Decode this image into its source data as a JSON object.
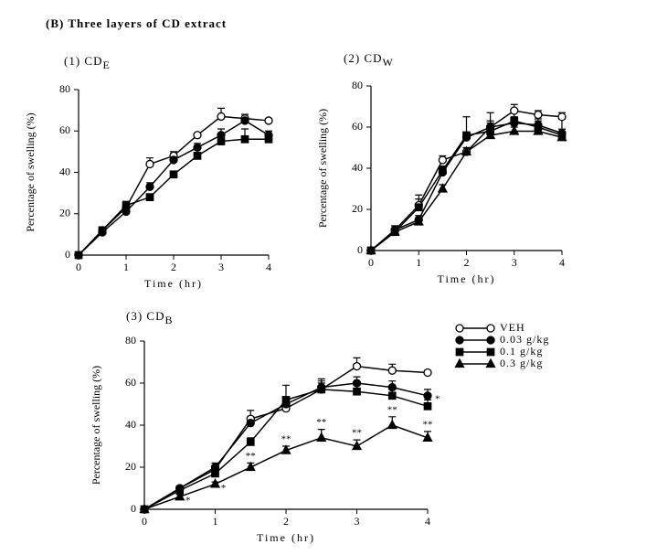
{
  "header": "(B) Three layers of CD extract",
  "chart_data": [
    {
      "type": "line",
      "title": "(1) CD",
      "subscript": "E",
      "xlabel": "Time (hr)",
      "ylabel": "Percentage of swelling (%)",
      "x": [
        0,
        0.5,
        1,
        1.5,
        2,
        2.5,
        3,
        3.5,
        4
      ],
      "xlim": [
        0,
        4
      ],
      "ylim": [
        0,
        80
      ],
      "xticks": [
        0,
        1,
        2,
        3,
        4
      ],
      "yticks": [
        0,
        20,
        40,
        60,
        80
      ],
      "legend": false,
      "series": [
        {
          "marker": "open-circle",
          "color": "#000000",
          "values": [
            0,
            12,
            23,
            44,
            48,
            58,
            67,
            66,
            65
          ],
          "errors": [
            0,
            1,
            2,
            3,
            2,
            1,
            4,
            2,
            1
          ]
        },
        {
          "marker": "circle",
          "color": "#000000",
          "values": [
            0,
            11,
            21,
            33,
            46,
            52,
            58,
            65,
            58
          ],
          "errors": [
            0,
            1,
            1,
            2,
            3,
            2,
            3,
            2,
            2
          ]
        },
        {
          "marker": "square",
          "color": "#000000",
          "values": [
            0,
            12,
            24,
            28,
            39,
            48,
            55,
            56,
            56
          ],
          "errors": [
            0,
            1,
            2,
            1,
            1,
            1,
            1,
            5,
            1
          ]
        }
      ]
    },
    {
      "type": "line",
      "title": "(2) CD",
      "subscript": "W",
      "xlabel": "Time (hr)",
      "ylabel": "Percentage of swelling (%)",
      "x": [
        0,
        0.5,
        1,
        1.5,
        2,
        2.5,
        3,
        3.5,
        4
      ],
      "xlim": [
        0,
        4
      ],
      "ylim": [
        0,
        80
      ],
      "xticks": [
        0,
        1,
        2,
        3,
        4
      ],
      "yticks": [
        0,
        20,
        40,
        60,
        80
      ],
      "legend": false,
      "series": [
        {
          "marker": "open-circle",
          "color": "#000000",
          "values": [
            0,
            10,
            22,
            44,
            48,
            60,
            68,
            66,
            65
          ],
          "errors": [
            0,
            2,
            3,
            2,
            2,
            2,
            3,
            2,
            2
          ]
        },
        {
          "marker": "circle",
          "color": "#000000",
          "values": [
            0,
            10,
            15,
            38,
            55,
            60,
            62,
            61,
            57
          ],
          "errors": [
            0,
            2,
            2,
            3,
            2,
            3,
            3,
            3,
            2
          ]
        },
        {
          "marker": "square",
          "color": "#000000",
          "values": [
            0,
            9,
            21,
            39,
            56,
            58,
            63,
            60,
            56
          ],
          "errors": [
            0,
            1,
            6,
            2,
            9,
            9,
            5,
            3,
            8
          ]
        },
        {
          "marker": "triangle",
          "color": "#000000",
          "values": [
            0,
            9,
            14,
            30,
            48,
            56,
            58,
            58,
            55
          ],
          "errors": [
            0,
            1,
            1,
            2,
            2,
            2,
            2,
            2,
            2
          ]
        }
      ]
    },
    {
      "type": "line",
      "title": "(3) CD",
      "subscript": "B",
      "xlabel": "Time (hr)",
      "ylabel": "Percentage of swelling (%)",
      "x": [
        0,
        0.5,
        1,
        1.5,
        2,
        2.5,
        3,
        3.5,
        4
      ],
      "xlim": [
        0,
        4
      ],
      "ylim": [
        0,
        80
      ],
      "xticks": [
        0,
        1,
        2,
        3,
        4
      ],
      "yticks": [
        0,
        20,
        40,
        60,
        80
      ],
      "legend": true,
      "series": [
        {
          "name": "VEH",
          "marker": "open-circle",
          "color": "#000000",
          "values": [
            0,
            10,
            19,
            43,
            48,
            57,
            68,
            66,
            65
          ],
          "errors": [
            0,
            1,
            2,
            4,
            2,
            5,
            4,
            3,
            1
          ]
        },
        {
          "name": "0.03 g/kg",
          "marker": "circle",
          "color": "#000000",
          "values": [
            0,
            10,
            20,
            41,
            50,
            58,
            60,
            58,
            54
          ],
          "errors": [
            0,
            1,
            2,
            3,
            3,
            3,
            3,
            3,
            3
          ],
          "markers": [
            null,
            null,
            null,
            null,
            null,
            null,
            null,
            null,
            "*"
          ]
        },
        {
          "name": "0.1 g/kg",
          "marker": "square",
          "color": "#000000",
          "values": [
            0,
            9,
            17,
            32,
            52,
            57,
            56,
            54,
            49
          ],
          "errors": [
            0,
            1,
            2,
            2,
            7,
            3,
            3,
            3,
            3
          ]
        },
        {
          "name": "0.3 g/kg",
          "marker": "triangle",
          "color": "#000000",
          "values": [
            0,
            6,
            12,
            20,
            28,
            34,
            30,
            40,
            34
          ],
          "errors": [
            0,
            1,
            1,
            2,
            2,
            4,
            3,
            4,
            3
          ],
          "markers": [
            null,
            "*",
            "*",
            "**",
            "**",
            "**",
            "**",
            "**",
            "**"
          ]
        }
      ]
    }
  ]
}
